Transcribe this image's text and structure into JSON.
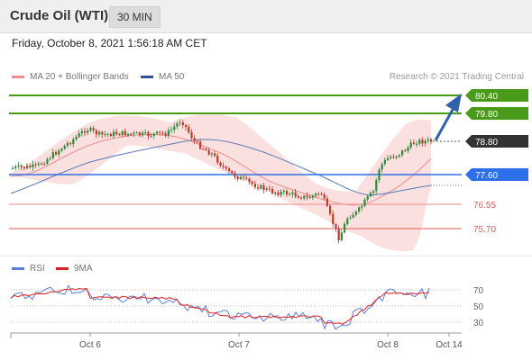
{
  "header": {
    "title": "Crude Oil (WTI)",
    "interval": "30 MIN"
  },
  "datetime": "Friday, October 8, 2021 1:56:18 AM CET",
  "legend": {
    "bollinger": "MA 20 + Bollinger Bands",
    "ma50": "MA 50",
    "credit": "Research © 2021 Trading Central"
  },
  "rsi_legend": {
    "rsi": "RSI",
    "ma": "9MA"
  },
  "colors": {
    "resistance": "#4a9a1a",
    "current": "#333333",
    "pivot": "#2d6fe8",
    "support": "#e05a5a",
    "bollinger_fill": "#fbe0e0",
    "ma20": "#f28c8c",
    "ma50": "#5b7cb8",
    "arrow": "#2f62a8",
    "bull": "#2e8b3a",
    "bear": "#c0392b",
    "rsi": "#5b80d8",
    "rsi_ma": "#e02020"
  },
  "levels": {
    "r2": "80.40",
    "r1": "79.80",
    "current": "78.80",
    "pivot": "77.60",
    "s1": "76.55",
    "s2": "75.70"
  },
  "rsi_axis": [
    "70",
    "50",
    "30"
  ],
  "x_axis": [
    "Oct 6",
    "Oct 7",
    "Oct 8",
    "Oct 14"
  ]
}
